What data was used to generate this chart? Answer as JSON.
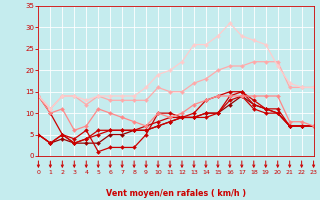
{
  "background_color": "#c5ecee",
  "grid_color": "#ffffff",
  "xlabel": "Vent moyen/en rafales ( km/h )",
  "xlabel_color": "#cc0000",
  "tick_color": "#cc0000",
  "xlim": [
    0,
    23
  ],
  "ylim": [
    0,
    35
  ],
  "yticks": [
    0,
    5,
    10,
    15,
    20,
    25,
    30,
    35
  ],
  "xticks": [
    0,
    1,
    2,
    3,
    4,
    5,
    6,
    7,
    8,
    9,
    10,
    11,
    12,
    13,
    14,
    15,
    16,
    17,
    18,
    19,
    20,
    21,
    22,
    23
  ],
  "lines": [
    {
      "x": [
        0,
        1,
        2,
        3,
        4,
        5,
        6,
        7,
        8,
        9,
        10,
        11,
        12,
        13,
        14,
        15,
        16,
        17,
        18,
        19,
        20,
        21,
        22,
        23
      ],
      "y": [
        5,
        3,
        4,
        3,
        3,
        3,
        5,
        5,
        6,
        6,
        7,
        8,
        9,
        9,
        10,
        10,
        12,
        14,
        12,
        11,
        10,
        7,
        7,
        7
      ],
      "color": "#990000",
      "linewidth": 0.9
    },
    {
      "x": [
        0,
        1,
        2,
        3,
        4,
        5,
        6,
        7,
        8,
        9,
        10,
        11,
        12,
        13,
        14,
        15,
        16,
        17,
        18,
        19,
        20,
        21,
        22,
        23
      ],
      "y": [
        5,
        3,
        5,
        3,
        4,
        5,
        6,
        6,
        6,
        6,
        7,
        8,
        9,
        9,
        9,
        10,
        13,
        14,
        11,
        10,
        10,
        7,
        7,
        7
      ],
      "color": "#cc0000",
      "linewidth": 0.9
    },
    {
      "x": [
        0,
        1,
        2,
        3,
        4,
        5,
        6,
        7,
        8,
        9,
        10,
        11,
        12,
        13,
        14,
        15,
        16,
        17,
        18,
        19,
        20,
        21,
        22,
        23
      ],
      "y": [
        5,
        3,
        5,
        3,
        4,
        6,
        6,
        6,
        6,
        7,
        8,
        9,
        9,
        9,
        10,
        10,
        14,
        15,
        13,
        11,
        10,
        7,
        7,
        7
      ],
      "color": "#cc0000",
      "linewidth": 0.9
    },
    {
      "x": [
        0,
        1,
        2,
        3,
        4,
        5,
        6,
        7,
        8,
        9,
        10,
        11,
        12,
        13,
        14,
        15,
        16,
        17,
        18,
        19,
        20,
        21,
        22,
        23
      ],
      "y": [
        14,
        10,
        5,
        4,
        6,
        1,
        2,
        2,
        2,
        5,
        10,
        10,
        9,
        10,
        13,
        14,
        15,
        15,
        12,
        11,
        11,
        7,
        7,
        7
      ],
      "color": "#cc0000",
      "linewidth": 0.9
    },
    {
      "x": [
        0,
        1,
        2,
        3,
        4,
        5,
        6,
        7,
        8,
        9,
        10,
        11,
        12,
        13,
        14,
        15,
        16,
        17,
        18,
        19,
        20,
        21,
        22,
        23
      ],
      "y": [
        14,
        10,
        11,
        6,
        7,
        11,
        10,
        9,
        8,
        7,
        10,
        9,
        10,
        12,
        13,
        14,
        14,
        14,
        14,
        14,
        14,
        8,
        8,
        7
      ],
      "color": "#ff8888",
      "linewidth": 0.9
    },
    {
      "x": [
        0,
        1,
        2,
        3,
        4,
        5,
        6,
        7,
        8,
        9,
        10,
        11,
        12,
        13,
        14,
        15,
        16,
        17,
        18,
        19,
        20,
        21,
        22,
        23
      ],
      "y": [
        14,
        11,
        14,
        14,
        12,
        14,
        13,
        13,
        13,
        13,
        16,
        15,
        15,
        17,
        18,
        20,
        21,
        21,
        22,
        22,
        22,
        16,
        16,
        16
      ],
      "color": "#ffaaaa",
      "linewidth": 0.9
    },
    {
      "x": [
        0,
        1,
        2,
        3,
        4,
        5,
        6,
        7,
        8,
        9,
        10,
        11,
        12,
        13,
        14,
        15,
        16,
        17,
        18,
        19,
        20,
        21,
        22,
        23
      ],
      "y": [
        14,
        11,
        14,
        14,
        13,
        14,
        14,
        14,
        14,
        16,
        19,
        20,
        22,
        26,
        26,
        28,
        31,
        28,
        27,
        26,
        21,
        17,
        16,
        16
      ],
      "color": "#ffcccc",
      "linewidth": 0.9
    }
  ]
}
